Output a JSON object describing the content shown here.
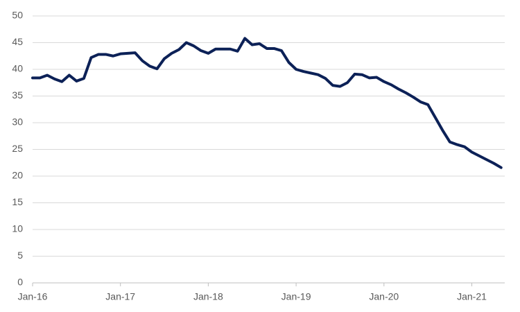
{
  "chart_data": {
    "type": "line",
    "categories": [
      "Jan-16",
      null,
      null,
      null,
      null,
      null,
      null,
      null,
      null,
      null,
      null,
      null,
      "Jan-17",
      null,
      null,
      null,
      null,
      null,
      null,
      null,
      null,
      null,
      null,
      null,
      "Jan-18",
      null,
      null,
      null,
      null,
      null,
      null,
      null,
      null,
      null,
      null,
      null,
      "Jan-19",
      null,
      null,
      null,
      null,
      null,
      null,
      null,
      null,
      null,
      null,
      null,
      "Jan-20",
      null,
      null,
      null,
      null,
      null,
      null,
      null,
      null,
      null,
      null,
      null,
      "Jan-21",
      null,
      null,
      null,
      null
    ],
    "series": [
      {
        "color": "#0c2157",
        "values": [
          38.4,
          38.4,
          38.9,
          38.2,
          37.7,
          38.9,
          37.8,
          38.3,
          42.2,
          42.8,
          42.8,
          42.5,
          42.9,
          43.0,
          43.1,
          41.6,
          40.6,
          40.1,
          42.0,
          43.0,
          43.7,
          45.0,
          44.4,
          43.5,
          43.0,
          43.8,
          43.8,
          43.8,
          43.4,
          45.8,
          44.6,
          44.8,
          43.9,
          43.9,
          43.5,
          41.3,
          40.0,
          39.6,
          39.3,
          39.0,
          38.3,
          37.0,
          36.8,
          37.5,
          39.1,
          39.0,
          38.4,
          38.5,
          37.7,
          37.1,
          36.3,
          35.6,
          34.8,
          33.9,
          33.4,
          31.0,
          28.6,
          26.4,
          25.9,
          25.5,
          24.5,
          23.8,
          23.1,
          22.4,
          21.6
        ]
      }
    ],
    "ylim": [
      0,
      50
    ],
    "yticks": [
      0,
      5,
      10,
      15,
      20,
      25,
      30,
      35,
      40,
      45,
      50
    ],
    "grid": true
  }
}
